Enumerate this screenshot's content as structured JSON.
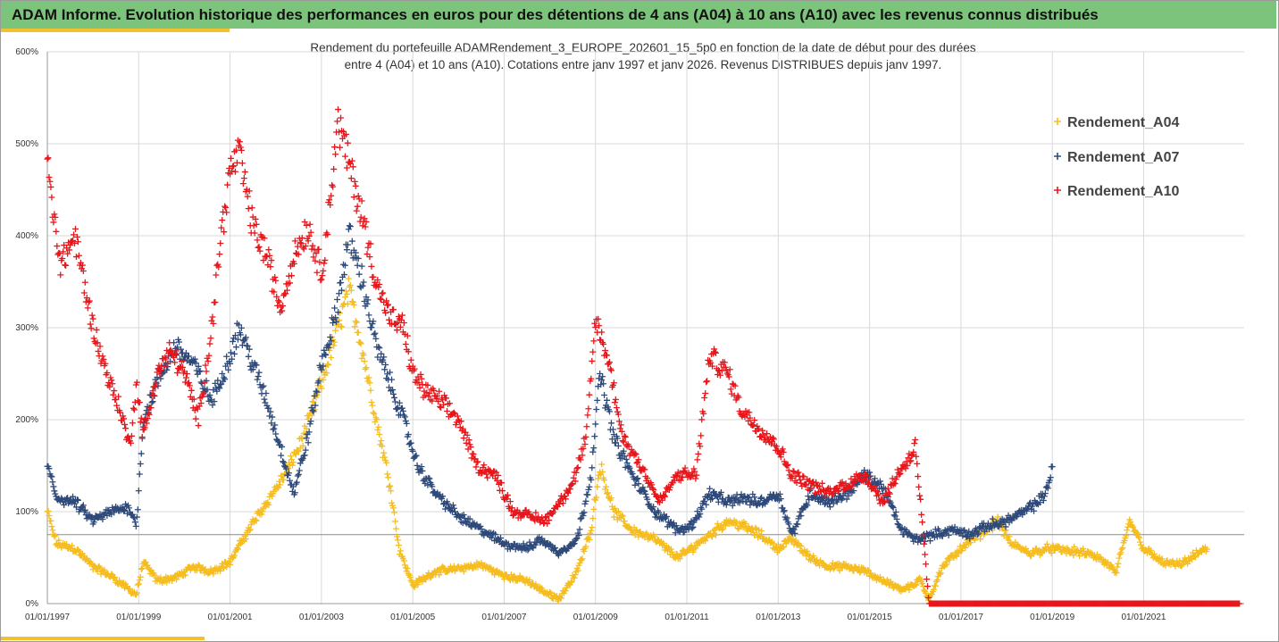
{
  "header": {
    "title": "ADAM Informe. Evolution historique des performances en euros pour des détentions de 4 ans (A04) à 10 ans (A10) avec les revenus connus distribués"
  },
  "colors": {
    "header_bg": "#7cc47c",
    "accent": "#f2c12e",
    "A04": "#f5bd1f",
    "A07": "#2e4a7a",
    "A10": "#e8161b",
    "grid": "#d9d9d9"
  },
  "chart_data": {
    "type": "scatter",
    "marker": "plus",
    "subtitle_line1": "Rendement du portefeuille ADAMRendement_3_EUROPE_202601_15_5p0  en fonction de la date de début pour des durées",
    "subtitle_line2": "entre 4 (A04) et 10 ans (A10). Cotations entre janv 1997 et janv 2026. Revenus DISTRIBUES depuis janv 1997.",
    "xlabel": "",
    "ylabel": "",
    "xlim": [
      1997.0,
      2023.2
    ],
    "ylim": [
      0,
      600
    ],
    "grid": true,
    "legend_position": "right",
    "x_ticks": [
      "01/01/1997",
      "01/01/1999",
      "01/01/2001",
      "01/01/2003",
      "01/01/2005",
      "01/01/2007",
      "01/01/2009",
      "01/01/2011",
      "01/01/2013",
      "01/01/2015",
      "01/01/2017",
      "01/01/2019",
      "01/01/2021"
    ],
    "y_ticks": [
      "0%",
      "100%",
      "200%",
      "300%",
      "400%",
      "500%",
      "600%"
    ],
    "reference_line_y": 75,
    "series": [
      {
        "name": "Rendement_A04",
        "x": [
          1997.0,
          1997.2,
          1997.6,
          1998.0,
          1998.4,
          1998.8,
          1998.95,
          1999.1,
          1999.4,
          1999.8,
          2000.2,
          2000.6,
          2001.0,
          2001.4,
          2001.8,
          2002.2,
          2002.6,
          2003.0,
          2003.3,
          2003.6,
          2003.8,
          2004.0,
          2004.2,
          2004.5,
          2004.7,
          2005.0,
          2005.5,
          2006.0,
          2006.5,
          2007.0,
          2007.5,
          2007.8,
          2008.2,
          2008.6,
          2008.9,
          2009.1,
          2009.4,
          2009.8,
          2010.3,
          2010.8,
          2011.1,
          2011.5,
          2011.9,
          2012.2,
          2012.6,
          2013.0,
          2013.3,
          2013.7,
          2014.1,
          2014.5,
          2014.9,
          2015.3,
          2015.7,
          2016.0,
          2016.1,
          2016.3,
          2016.6,
          2017.0,
          2017.4,
          2017.8,
          2018.1,
          2018.5,
          2018.9,
          2019.3,
          2019.7,
          2020.0,
          2020.4,
          2020.7,
          2021.0,
          2021.4,
          2021.8,
          2022.2,
          2022.4
        ],
        "values": [
          100,
          65,
          60,
          40,
          30,
          15,
          10,
          45,
          25,
          28,
          40,
          35,
          45,
          80,
          110,
          140,
          180,
          240,
          290,
          340,
          300,
          250,
          200,
          130,
          60,
          20,
          35,
          38,
          42,
          30,
          25,
          15,
          5,
          35,
          80,
          150,
          100,
          80,
          70,
          50,
          60,
          75,
          90,
          85,
          75,
          60,
          70,
          50,
          40,
          40,
          35,
          25,
          15,
          20,
          28,
          5,
          40,
          60,
          75,
          90,
          65,
          55,
          60,
          58,
          55,
          50,
          35,
          90,
          60,
          45,
          42,
          55,
          60
        ]
      },
      {
        "name": "Rendement_A07",
        "x": [
          1997.0,
          1997.2,
          1997.6,
          1998.0,
          1998.4,
          1998.8,
          1998.95,
          1999.1,
          1999.4,
          1999.8,
          2000.2,
          2000.6,
          2001.0,
          2001.2,
          2001.5,
          2001.8,
          2002.1,
          2002.4,
          2002.7,
          2003.0,
          2003.3,
          2003.6,
          2003.9,
          2004.2,
          2004.5,
          2004.8,
          2005.1,
          2005.5,
          2006.0,
          2006.5,
          2007.0,
          2007.5,
          2007.8,
          2008.2,
          2008.6,
          2008.9,
          2009.1,
          2009.4,
          2009.8,
          2010.3,
          2010.8,
          2011.1,
          2011.5,
          2011.9,
          2012.2,
          2012.6,
          2013.0,
          2013.3,
          2013.7,
          2014.1,
          2014.5,
          2014.9,
          2015.3,
          2015.7,
          2016.0,
          2016.4,
          2016.8,
          2017.2,
          2017.6,
          2018.0,
          2018.4,
          2018.8,
          2019.0
        ],
        "values": [
          150,
          115,
          110,
          90,
          100,
          105,
          85,
          200,
          240,
          280,
          260,
          220,
          270,
          300,
          260,
          220,
          170,
          120,
          180,
          260,
          310,
          400,
          350,
          280,
          240,
          200,
          150,
          120,
          95,
          80,
          65,
          60,
          70,
          55,
          70,
          140,
          250,
          180,
          140,
          100,
          80,
          85,
          120,
          110,
          115,
          110,
          120,
          75,
          120,
          110,
          120,
          140,
          125,
          80,
          70,
          75,
          80,
          75,
          85,
          90,
          100,
          115,
          145
        ]
      },
      {
        "name": "Rendement_A10",
        "x": [
          1997.0,
          1997.1,
          1997.3,
          1997.6,
          1998.0,
          1998.3,
          1998.6,
          1998.8,
          1998.95,
          1999.1,
          1999.4,
          1999.7,
          2000.0,
          2000.3,
          2000.6,
          2000.8,
          2001.0,
          2001.2,
          2001.5,
          2001.8,
          2002.1,
          2002.4,
          2002.7,
          2003.0,
          2003.2,
          2003.35,
          2003.6,
          2003.9,
          2004.2,
          2004.5,
          2004.8,
          2005.0,
          2005.3,
          2005.6,
          2006.0,
          2006.4,
          2006.8,
          2007.2,
          2007.6,
          2007.9,
          2008.2,
          2008.5,
          2008.8,
          2009.0,
          2009.3,
          2009.6,
          2010.0,
          2010.4,
          2010.8,
          2011.2,
          2011.5,
          2011.9,
          2012.2,
          2012.6,
          2013.0,
          2013.3,
          2013.7,
          2014.1,
          2014.5,
          2014.9,
          2015.3,
          2015.6,
          2015.9,
          2016.0,
          2016.3,
          2016.8,
          2017.3,
          2017.8,
          2018.3,
          2018.8,
          2019.3,
          2019.8,
          2020.3,
          2020.8,
          2021.3,
          2021.8,
          2022.3,
          2022.8,
          2023.1
        ],
        "values": [
          490,
          430,
          370,
          400,
          300,
          250,
          210,
          170,
          240,
          180,
          250,
          275,
          250,
          200,
          300,
          400,
          470,
          490,
          410,
          380,
          320,
          380,
          410,
          360,
          440,
          525,
          480,
          420,
          350,
          310,
          300,
          250,
          230,
          220,
          200,
          150,
          140,
          100,
          95,
          90,
          110,
          130,
          180,
          310,
          260,
          180,
          150,
          110,
          140,
          140,
          270,
          250,
          210,
          190,
          170,
          140,
          130,
          120,
          130,
          140,
          110,
          140,
          160,
          175,
          0,
          0,
          0,
          0,
          0,
          0,
          0,
          0,
          0,
          0,
          0,
          0,
          0,
          0,
          0
        ]
      }
    ]
  }
}
